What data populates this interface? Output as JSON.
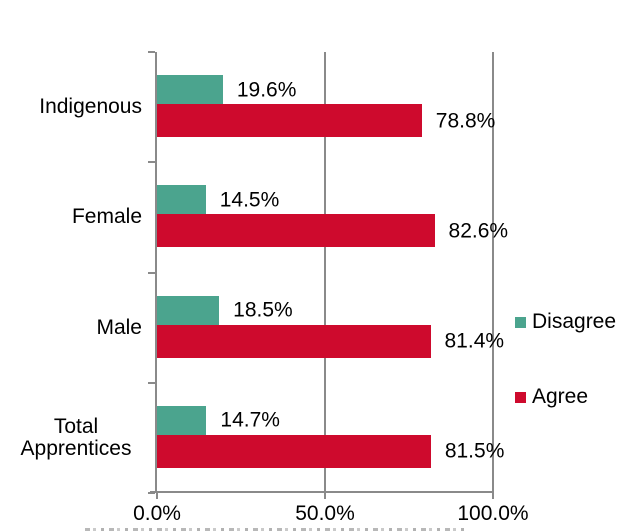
{
  "chart_data": {
    "type": "bar",
    "orientation": "horizontal",
    "title": "",
    "categories": [
      "Indigenous",
      "Female",
      "Male",
      "Total Apprentices"
    ],
    "series": [
      {
        "name": "Disagree",
        "color": "#4ba48e",
        "values": [
          19.6,
          14.5,
          18.5,
          14.7
        ],
        "labels": [
          "19.6%",
          "14.5%",
          "18.5%",
          "14.7%"
        ]
      },
      {
        "name": "Agree",
        "color": "#ce0a2d",
        "values": [
          78.8,
          82.6,
          81.4,
          81.5
        ],
        "labels": [
          "78.8%",
          "82.6%",
          "81.4%",
          "81.5%"
        ]
      }
    ],
    "x_axis": {
      "min": 0,
      "max": 100,
      "ticks": [
        {
          "value": 0,
          "label": "0.0%"
        },
        {
          "value": 50,
          "label": "50.0%"
        },
        {
          "value": 100,
          "label": "100.0%"
        }
      ]
    },
    "legend": {
      "position": "right",
      "entries": [
        "Disagree",
        "Agree"
      ]
    },
    "grid": true,
    "colors": {
      "axis": "#8a8a8a",
      "gridline": "#8a8a8a",
      "text": "#000000",
      "background": "#ffffff"
    }
  }
}
